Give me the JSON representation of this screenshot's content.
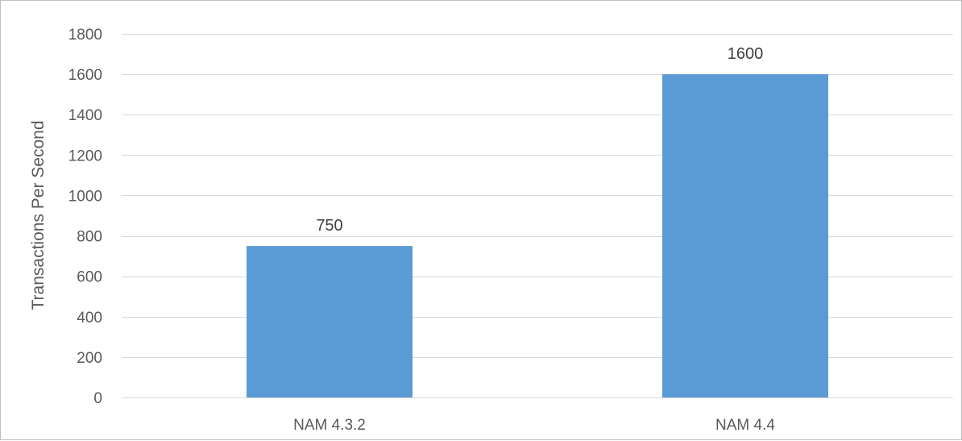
{
  "chart_data": {
    "type": "bar",
    "categories": [
      "NAM 4.3.2",
      "NAM 4.4"
    ],
    "values": [
      750,
      1600
    ],
    "data_labels": [
      "750",
      "1600"
    ],
    "title": "",
    "xlabel": "",
    "ylabel": "Transactions Per Second",
    "ylim": [
      0,
      1800
    ],
    "yticks": [
      0,
      200,
      400,
      600,
      800,
      1000,
      1200,
      1400,
      1600,
      1800
    ],
    "ytick_labels": [
      "0",
      "200",
      "400",
      "600",
      "800",
      "1000",
      "1200",
      "1400",
      "1600",
      "1800"
    ],
    "grid": true,
    "legend": "none",
    "colors": {
      "bar": "#5b9bd5",
      "grid": "#d9d9d9",
      "text": "#595959"
    }
  }
}
